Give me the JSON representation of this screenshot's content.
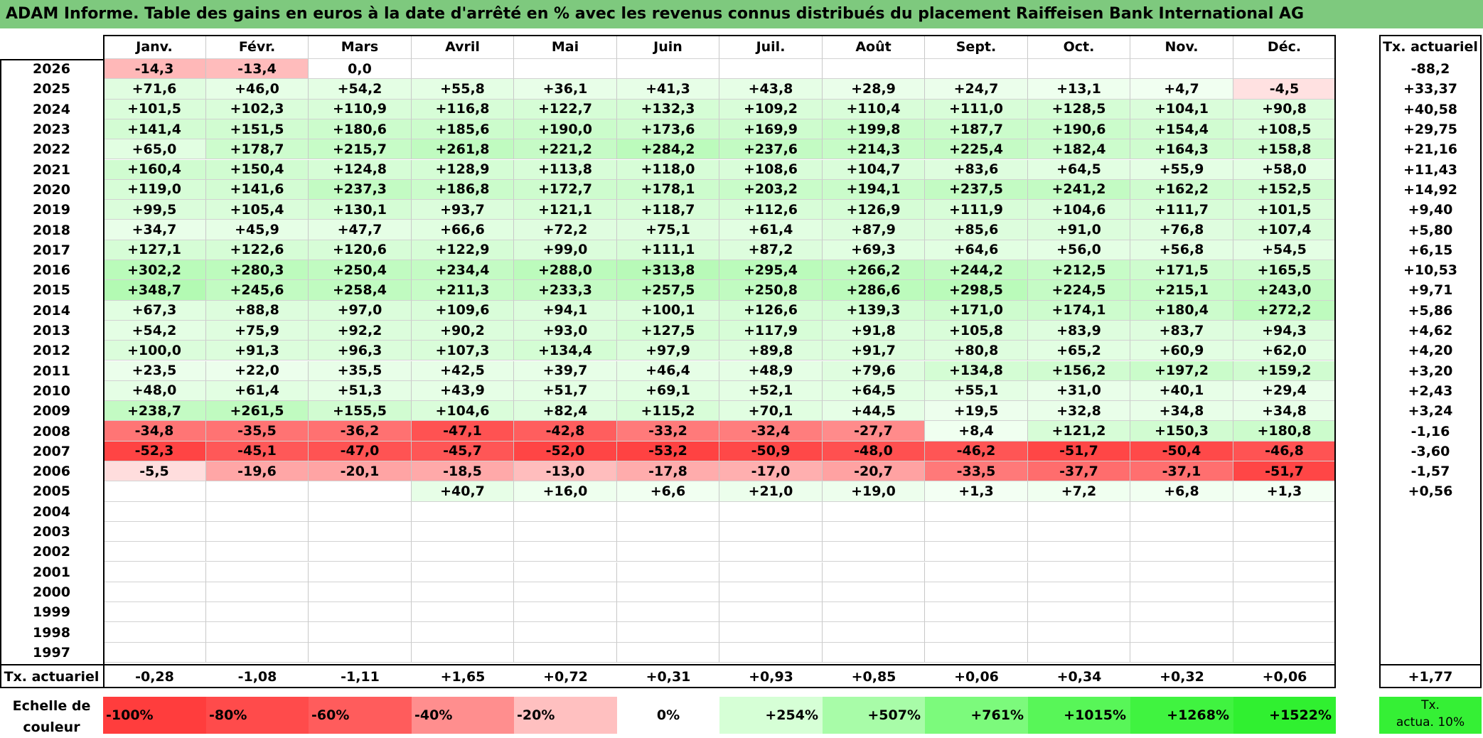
{
  "title": "ADAM Informe. Table des gains en euros à la date d'arrêté en % avec les revenus connus distribués du placement Raiffeisen Bank International AG",
  "chart_data": {
    "type": "table",
    "months": [
      "Janv.",
      "Févr.",
      "Mars",
      "Avril",
      "Mai",
      "Juin",
      "Juil.",
      "Août",
      "Sept.",
      "Oct.",
      "Nov.",
      "Déc."
    ],
    "rate_header": "Tx. actuariel",
    "rows": [
      {
        "year": "2026",
        "values": [
          "-14,3",
          "-13,4",
          "0,0",
          "",
          "",
          "",
          "",
          "",
          "",
          "",
          "",
          ""
        ],
        "rate": "-88,2"
      },
      {
        "year": "2025",
        "values": [
          "+71,6",
          "+46,0",
          "+54,2",
          "+55,8",
          "+36,1",
          "+41,3",
          "+43,8",
          "+28,9",
          "+24,7",
          "+13,1",
          "+4,7",
          "-4,5"
        ],
        "rate": "+33,37"
      },
      {
        "year": "2024",
        "values": [
          "+101,5",
          "+102,3",
          "+110,9",
          "+116,8",
          "+122,7",
          "+132,3",
          "+109,2",
          "+110,4",
          "+111,0",
          "+128,5",
          "+104,1",
          "+90,8"
        ],
        "rate": "+40,58"
      },
      {
        "year": "2023",
        "values": [
          "+141,4",
          "+151,5",
          "+180,6",
          "+185,6",
          "+190,0",
          "+173,6",
          "+169,9",
          "+199,8",
          "+187,7",
          "+190,6",
          "+154,4",
          "+108,5"
        ],
        "rate": "+29,75"
      },
      {
        "year": "2022",
        "values": [
          "+65,0",
          "+178,7",
          "+215,7",
          "+261,8",
          "+221,2",
          "+284,2",
          "+237,6",
          "+214,3",
          "+225,4",
          "+182,4",
          "+164,3",
          "+158,8"
        ],
        "rate": "+21,16"
      },
      {
        "year": "2021",
        "values": [
          "+160,4",
          "+150,4",
          "+124,8",
          "+128,9",
          "+113,8",
          "+118,0",
          "+108,6",
          "+104,7",
          "+83,6",
          "+64,5",
          "+55,9",
          "+58,0"
        ],
        "rate": "+11,43"
      },
      {
        "year": "2020",
        "values": [
          "+119,0",
          "+141,6",
          "+237,3",
          "+186,8",
          "+172,7",
          "+178,1",
          "+203,2",
          "+194,1",
          "+237,5",
          "+241,2",
          "+162,2",
          "+152,5"
        ],
        "rate": "+14,92"
      },
      {
        "year": "2019",
        "values": [
          "+99,5",
          "+105,4",
          "+130,1",
          "+93,7",
          "+121,1",
          "+118,7",
          "+112,6",
          "+126,9",
          "+111,9",
          "+104,6",
          "+111,7",
          "+101,5"
        ],
        "rate": "+9,40"
      },
      {
        "year": "2018",
        "values": [
          "+34,7",
          "+45,9",
          "+47,7",
          "+66,6",
          "+72,2",
          "+75,1",
          "+61,4",
          "+87,9",
          "+85,6",
          "+91,0",
          "+76,8",
          "+107,4"
        ],
        "rate": "+5,80"
      },
      {
        "year": "2017",
        "values": [
          "+127,1",
          "+122,6",
          "+120,6",
          "+122,9",
          "+99,0",
          "+111,1",
          "+87,2",
          "+69,3",
          "+64,6",
          "+56,0",
          "+56,8",
          "+54,5"
        ],
        "rate": "+6,15"
      },
      {
        "year": "2016",
        "values": [
          "+302,2",
          "+280,3",
          "+250,4",
          "+234,4",
          "+288,0",
          "+313,8",
          "+295,4",
          "+266,2",
          "+244,2",
          "+212,5",
          "+171,5",
          "+165,5"
        ],
        "rate": "+10,53"
      },
      {
        "year": "2015",
        "values": [
          "+348,7",
          "+245,6",
          "+258,4",
          "+211,3",
          "+233,3",
          "+257,5",
          "+250,8",
          "+286,6",
          "+298,5",
          "+224,5",
          "+215,1",
          "+243,0"
        ],
        "rate": "+9,71"
      },
      {
        "year": "2014",
        "values": [
          "+67,3",
          "+88,8",
          "+97,0",
          "+109,6",
          "+94,1",
          "+100,1",
          "+126,6",
          "+139,3",
          "+171,0",
          "+174,1",
          "+180,4",
          "+272,2"
        ],
        "rate": "+5,86"
      },
      {
        "year": "2013",
        "values": [
          "+54,2",
          "+75,9",
          "+92,2",
          "+90,2",
          "+93,0",
          "+127,5",
          "+117,9",
          "+91,8",
          "+105,8",
          "+83,9",
          "+83,7",
          "+94,3"
        ],
        "rate": "+4,62"
      },
      {
        "year": "2012",
        "values": [
          "+100,0",
          "+91,3",
          "+96,3",
          "+107,3",
          "+134,4",
          "+97,9",
          "+89,8",
          "+91,7",
          "+80,8",
          "+65,2",
          "+60,9",
          "+62,0"
        ],
        "rate": "+4,20"
      },
      {
        "year": "2011",
        "values": [
          "+23,5",
          "+22,0",
          "+35,5",
          "+42,5",
          "+39,7",
          "+46,4",
          "+48,9",
          "+79,6",
          "+134,8",
          "+156,2",
          "+197,2",
          "+159,2"
        ],
        "rate": "+3,20"
      },
      {
        "year": "2010",
        "values": [
          "+48,0",
          "+61,4",
          "+51,3",
          "+43,9",
          "+51,7",
          "+69,1",
          "+52,1",
          "+64,5",
          "+55,1",
          "+31,0",
          "+40,1",
          "+29,4"
        ],
        "rate": "+2,43"
      },
      {
        "year": "2009",
        "values": [
          "+238,7",
          "+261,5",
          "+155,5",
          "+104,6",
          "+82,4",
          "+115,2",
          "+70,1",
          "+44,5",
          "+19,5",
          "+32,8",
          "+34,8",
          "+34,8"
        ],
        "rate": "+3,24"
      },
      {
        "year": "2008",
        "values": [
          "-34,8",
          "-35,5",
          "-36,2",
          "-47,1",
          "-42,8",
          "-33,2",
          "-32,4",
          "-27,7",
          "+8,4",
          "+121,2",
          "+150,3",
          "+180,8"
        ],
        "rate": "-1,16"
      },
      {
        "year": "2007",
        "values": [
          "-52,3",
          "-45,1",
          "-47,0",
          "-45,7",
          "-52,0",
          "-53,2",
          "-50,9",
          "-48,0",
          "-46,2",
          "-51,7",
          "-50,4",
          "-46,8"
        ],
        "rate": "-3,60"
      },
      {
        "year": "2006",
        "values": [
          "-5,5",
          "-19,6",
          "-20,1",
          "-18,5",
          "-13,0",
          "-17,8",
          "-17,0",
          "-20,7",
          "-33,5",
          "-37,7",
          "-37,1",
          "-51,7"
        ],
        "rate": "-1,57"
      },
      {
        "year": "2005",
        "values": [
          "",
          "",
          "",
          "+40,7",
          "+16,0",
          "+6,6",
          "+21,0",
          "+19,0",
          "+1,3",
          "+7,2",
          "+6,8",
          "+1,3"
        ],
        "rate": "+0,56"
      },
      {
        "year": "2004",
        "values": [
          "",
          "",
          "",
          "",
          "",
          "",
          "",
          "",
          "",
          "",
          "",
          ""
        ],
        "rate": ""
      },
      {
        "year": "2003",
        "values": [
          "",
          "",
          "",
          "",
          "",
          "",
          "",
          "",
          "",
          "",
          "",
          ""
        ],
        "rate": ""
      },
      {
        "year": "2002",
        "values": [
          "",
          "",
          "",
          "",
          "",
          "",
          "",
          "",
          "",
          "",
          "",
          ""
        ],
        "rate": ""
      },
      {
        "year": "2001",
        "values": [
          "",
          "",
          "",
          "",
          "",
          "",
          "",
          "",
          "",
          "",
          "",
          ""
        ],
        "rate": ""
      },
      {
        "year": "2000",
        "values": [
          "",
          "",
          "",
          "",
          "",
          "",
          "",
          "",
          "",
          "",
          "",
          ""
        ],
        "rate": ""
      },
      {
        "year": "1999",
        "values": [
          "",
          "",
          "",
          "",
          "",
          "",
          "",
          "",
          "",
          "",
          "",
          ""
        ],
        "rate": ""
      },
      {
        "year": "1998",
        "values": [
          "",
          "",
          "",
          "",
          "",
          "",
          "",
          "",
          "",
          "",
          "",
          ""
        ],
        "rate": ""
      },
      {
        "year": "1997",
        "values": [
          "",
          "",
          "",
          "",
          "",
          "",
          "",
          "",
          "",
          "",
          "",
          ""
        ],
        "rate": ""
      }
    ],
    "footer": {
      "label": "Tx. actuariel",
      "values": [
        "-0,28",
        "-1,08",
        "-1,11",
        "+1,65",
        "+0,72",
        "+0,31",
        "+0,93",
        "+0,85",
        "+0,06",
        "+0,34",
        "+0,32",
        "+0,06"
      ],
      "overall": "+1,77"
    },
    "color_scale": {
      "label_line1": "Echelle de",
      "label_line2": "couleur",
      "steps": [
        {
          "label": "-100%",
          "value": -100,
          "color": "#ff3d3d"
        },
        {
          "label": "-80%",
          "value": -80,
          "color": "#ff4b4b"
        },
        {
          "label": "-60%",
          "value": -60,
          "color": "#ff5c5c"
        },
        {
          "label": "-40%",
          "value": -40,
          "color": "#ff8e8e"
        },
        {
          "label": "-20%",
          "value": -20,
          "color": "#ffc0c0"
        },
        {
          "label": "0%",
          "value": 0,
          "color": "#ffffff"
        },
        {
          "label": "+254%",
          "value": 254,
          "color": "#d6ffd6"
        },
        {
          "label": "+507%",
          "value": 507,
          "color": "#a8fca8"
        },
        {
          "label": "+761%",
          "value": 761,
          "color": "#7cfa7c"
        },
        {
          "label": "+1015%",
          "value": 1015,
          "color": "#58f658"
        },
        {
          "label": "+1268%",
          "value": 1268,
          "color": "#40f340"
        },
        {
          "label": "+1522%",
          "value": 1522,
          "color": "#30f030"
        }
      ],
      "rate_legend_line1": "Tx.",
      "rate_legend_line2": "actua. 10%",
      "rate_legend_color": "#35f035"
    }
  }
}
